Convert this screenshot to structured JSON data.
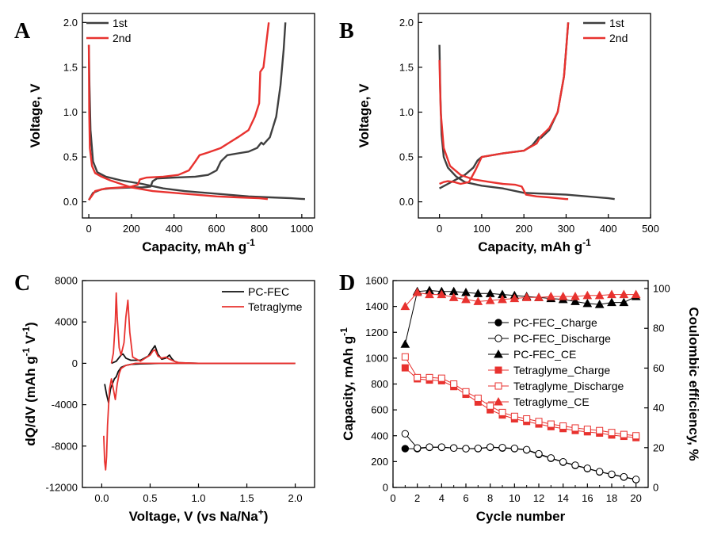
{
  "chart_data": [
    {
      "panel": "A",
      "type": "line",
      "xlabel": "Capacity, mAh g",
      "xlabel_sup": "-1",
      "ylabel": "Voltage, V",
      "xlim": [
        -30,
        1060
      ],
      "ylim": [
        -0.18,
        2.1
      ],
      "xticks": [
        0,
        200,
        400,
        600,
        800,
        1000
      ],
      "yticks": [
        0.0,
        0.5,
        1.0,
        1.5,
        2.0
      ],
      "ytick_labels": [
        "0.0",
        "0.5",
        "1.0",
        "1.5",
        "2.0"
      ],
      "legend_position": "top-left",
      "series": [
        {
          "name": "1st",
          "color": "#3f3f3f",
          "segments": [
            {
              "x": [
                0,
                3,
                8,
                20,
                40,
                80,
                150,
                250,
                350,
                450,
                550,
                650,
                750,
                850,
                950,
                1015
              ],
              "y": [
                1.75,
                1.3,
                0.8,
                0.45,
                0.33,
                0.28,
                0.24,
                0.2,
                0.15,
                0.12,
                0.1,
                0.08,
                0.06,
                0.05,
                0.04,
                0.03
              ]
            },
            {
              "x": [
                0,
                20,
                60,
                100,
                150,
                200,
                250,
                290,
                300,
                320,
                400,
                500,
                560,
                600,
                620,
                650,
                700,
                750,
                790,
                810,
                820,
                850,
                880,
                900,
                915,
                923
              ],
              "y": [
                0.02,
                0.1,
                0.14,
                0.15,
                0.155,
                0.16,
                0.16,
                0.17,
                0.23,
                0.26,
                0.27,
                0.28,
                0.3,
                0.35,
                0.45,
                0.52,
                0.54,
                0.56,
                0.6,
                0.66,
                0.64,
                0.72,
                0.95,
                1.3,
                1.7,
                2.0
              ]
            }
          ]
        },
        {
          "name": "2nd",
          "color": "#e8322f",
          "segments": [
            {
              "x": [
                0,
                2,
                5,
                15,
                30,
                60,
                100,
                150,
                200,
                300,
                400,
                500,
                600,
                700,
                800,
                840
              ],
              "y": [
                1.75,
                1.0,
                0.6,
                0.4,
                0.32,
                0.28,
                0.24,
                0.2,
                0.16,
                0.12,
                0.1,
                0.08,
                0.06,
                0.05,
                0.04,
                0.03
              ]
            },
            {
              "x": [
                0,
                30,
                80,
                150,
                200,
                230,
                240,
                270,
                350,
                420,
                470,
                500,
                520,
                560,
                620,
                660,
                700,
                750,
                780,
                800,
                805,
                820,
                835,
                845
              ],
              "y": [
                0.02,
                0.12,
                0.15,
                0.16,
                0.17,
                0.19,
                0.25,
                0.27,
                0.28,
                0.3,
                0.35,
                0.45,
                0.52,
                0.55,
                0.6,
                0.66,
                0.72,
                0.8,
                0.95,
                1.1,
                1.45,
                1.5,
                1.8,
                2.0
              ]
            }
          ]
        }
      ]
    },
    {
      "panel": "B",
      "type": "line",
      "xlabel": "Capacity, mAh g",
      "xlabel_sup": "-1",
      "ylabel": "Voltage, V",
      "xlim": [
        -50,
        500
      ],
      "ylim": [
        -0.18,
        2.1
      ],
      "xticks": [
        0,
        100,
        200,
        300,
        400,
        500
      ],
      "yticks": [
        0.0,
        0.5,
        1.0,
        1.5,
        2.0
      ],
      "ytick_labels": [
        "0.0",
        "0.5",
        "1.0",
        "1.5",
        "2.0"
      ],
      "legend_position": "top-right",
      "series": [
        {
          "name": "1st",
          "color": "#3f3f3f",
          "segments": [
            {
              "x": [
                0,
                2,
                5,
                10,
                20,
                40,
                60,
                100,
                150,
                200,
                250,
                300,
                350,
                400,
                415
              ],
              "y": [
                1.75,
                1.2,
                0.75,
                0.5,
                0.38,
                0.28,
                0.22,
                0.18,
                0.15,
                0.1,
                0.09,
                0.08,
                0.06,
                0.04,
                0.03
              ]
            },
            {
              "x": [
                0,
                20,
                40,
                60,
                80,
                90,
                100,
                150,
                200,
                220,
                235,
                240,
                260,
                280,
                295,
                300,
                305
              ],
              "y": [
                0.15,
                0.2,
                0.25,
                0.3,
                0.38,
                0.46,
                0.5,
                0.54,
                0.57,
                0.63,
                0.72,
                0.71,
                0.8,
                1.0,
                1.4,
                1.7,
                2.0
              ]
            }
          ]
        },
        {
          "name": "2nd",
          "color": "#e8322f",
          "segments": [
            {
              "x": [
                0,
                3,
                10,
                25,
                50,
                80,
                120,
                150,
                180,
                195,
                205,
                230,
                260,
                300,
                305
              ],
              "y": [
                1.58,
                1.0,
                0.6,
                0.4,
                0.3,
                0.25,
                0.22,
                0.2,
                0.19,
                0.17,
                0.08,
                0.06,
                0.05,
                0.03,
                0.03
              ]
            },
            {
              "x": [
                0,
                10,
                20,
                35,
                50,
                70,
                85,
                100,
                150,
                200,
                230,
                240,
                260,
                280,
                295,
                300,
                305
              ],
              "y": [
                0.2,
                0.22,
                0.23,
                0.22,
                0.2,
                0.22,
                0.35,
                0.5,
                0.54,
                0.57,
                0.65,
                0.73,
                0.82,
                1.0,
                1.4,
                1.7,
                2.0
              ]
            }
          ]
        }
      ]
    },
    {
      "panel": "C",
      "type": "line",
      "xlabel": "Voltage, V (vs Na/Na",
      "xlabel_sup": "+",
      "xlabel_end": ")",
      "ylabel": "dQ/dV (mAh g",
      "ylabel_sup1": "-1",
      "ylabel_mid": " V",
      "ylabel_sup2": "-1",
      "ylabel_end": ")",
      "xlim": [
        -0.2,
        2.2
      ],
      "ylim": [
        -12000,
        8000
      ],
      "xticks": [
        0.0,
        0.5,
        1.0,
        1.5,
        2.0
      ],
      "xtick_labels": [
        "0.0",
        "0.5",
        "1.0",
        "1.5",
        "2.0"
      ],
      "yticks": [
        -12000,
        -8000,
        -4000,
        0,
        4000,
        8000
      ],
      "legend_position": "top-right",
      "series": [
        {
          "name": "PC-FEC",
          "color": "#111111",
          "segments": [
            {
              "x": [
                0.03,
                0.05,
                0.07,
                0.09,
                0.11,
                0.13,
                0.15,
                0.17,
                0.2,
                0.25,
                0.3,
                0.4,
                0.5,
                0.6,
                0.7,
                0.8,
                1.0,
                1.5,
                2.0
              ],
              "y": [
                -2000,
                -3000,
                -3800,
                -2500,
                -2000,
                -1500,
                -1300,
                -800,
                -400,
                -200,
                -100,
                -50,
                -30,
                0,
                0,
                0,
                0,
                0,
                0
              ]
            },
            {
              "x": [
                0.1,
                0.15,
                0.2,
                0.22,
                0.25,
                0.3,
                0.4,
                0.48,
                0.52,
                0.55,
                0.58,
                0.62,
                0.66,
                0.7,
                0.72,
                0.75,
                0.8,
                1.0,
                1.5,
                2.0
              ],
              "y": [
                0,
                200,
                800,
                900,
                500,
                300,
                300,
                700,
                1300,
                1700,
                900,
                400,
                500,
                800,
                500,
                200,
                50,
                0,
                0,
                0
              ]
            }
          ]
        },
        {
          "name": "Tetraglyme",
          "color": "#e8322f",
          "segments": [
            {
              "x": [
                0.02,
                0.03,
                0.04,
                0.05,
                0.06,
                0.08,
                0.1,
                0.12,
                0.14,
                0.16,
                0.18,
                0.2,
                0.25,
                0.3,
                0.35,
                0.4,
                0.5,
                0.6,
                1.0,
                1.5,
                2.0
              ],
              "y": [
                -7000,
                -9500,
                -10300,
                -9000,
                -6000,
                -2500,
                -1500,
                -2500,
                -3500,
                -2000,
                -1000,
                -500,
                -200,
                -100,
                0,
                0,
                0,
                0,
                0,
                0,
                0
              ]
            },
            {
              "x": [
                0.1,
                0.12,
                0.14,
                0.15,
                0.16,
                0.18,
                0.2,
                0.23,
                0.25,
                0.27,
                0.29,
                0.32,
                0.4,
                0.5,
                0.53,
                0.55,
                0.58,
                0.62,
                0.66,
                0.7,
                0.75,
                0.8,
                1.0,
                1.5,
                2.0
              ],
              "y": [
                0,
                1000,
                4000,
                6800,
                4500,
                1500,
                800,
                2000,
                4500,
                6100,
                3000,
                600,
                200,
                800,
                1200,
                1300,
                700,
                500,
                600,
                400,
                200,
                50,
                0,
                0,
                0
              ]
            }
          ]
        }
      ]
    },
    {
      "panel": "D",
      "type": "line",
      "xlabel": "Cycle number",
      "ylabel_left": "Capacity, mAh g",
      "ylabel_left_sup": "-1",
      "ylabel_right": "Coulombic efficiency, %",
      "xlim": [
        0,
        21
      ],
      "ylim_left": [
        0,
        1600
      ],
      "ylim_right": [
        0,
        104
      ],
      "xticks": [
        0,
        2,
        4,
        6,
        8,
        10,
        12,
        14,
        16,
        18,
        20
      ],
      "yticks_left": [
        0,
        200,
        400,
        600,
        800,
        1000,
        1200,
        1400,
        1600
      ],
      "yticks_right": [
        0,
        20,
        40,
        60,
        80,
        100
      ],
      "legend_position": "center-right",
      "x": [
        1,
        2,
        3,
        4,
        5,
        6,
        7,
        8,
        9,
        10,
        11,
        12,
        13,
        14,
        15,
        16,
        17,
        18,
        19,
        20
      ],
      "series": [
        {
          "name": "PC-FEC_Charge",
          "color": "#000000",
          "marker": "circle",
          "filled": true,
          "axis": "left",
          "values": [
            300,
            300,
            310,
            310,
            305,
            300,
            300,
            310,
            305,
            300,
            290,
            255,
            225,
            195,
            170,
            145,
            120,
            100,
            80,
            60
          ]
        },
        {
          "name": "PC-FEC_Discharge",
          "color": "#000000",
          "marker": "circle",
          "filled": false,
          "axis": "left",
          "values": [
            415,
            305,
            312,
            312,
            305,
            300,
            302,
            312,
            308,
            302,
            292,
            260,
            228,
            198,
            172,
            148,
            122,
            102,
            82,
            62
          ]
        },
        {
          "name": "PC-FEC_CE",
          "color": "#000000",
          "marker": "triangle",
          "filled": true,
          "axis": "right",
          "values": [
            72,
            98.5,
            99,
            98.5,
            98.5,
            98,
            97.5,
            97.5,
            97,
            96.5,
            96,
            95.5,
            95,
            94.5,
            93.5,
            92.5,
            92,
            93,
            93,
            96
          ]
        },
        {
          "name": "Tetraglyme_Charge",
          "color": "#e8322f",
          "marker": "square",
          "filled": true,
          "axis": "left",
          "values": [
            925,
            840,
            830,
            825,
            780,
            720,
            660,
            600,
            560,
            530,
            510,
            490,
            470,
            455,
            440,
            430,
            420,
            405,
            395,
            385
          ]
        },
        {
          "name": "Tetraglyme_Discharge",
          "color": "#e8322f",
          "marker": "square",
          "filled": false,
          "axis": "left",
          "values": [
            1010,
            850,
            850,
            845,
            800,
            740,
            690,
            630,
            580,
            550,
            530,
            510,
            490,
            475,
            460,
            450,
            440,
            425,
            410,
            400
          ]
        },
        {
          "name": "Tetraglyme_CE",
          "color": "#e8322f",
          "marker": "triangle",
          "filled": true,
          "axis": "right",
          "values": [
            91,
            98,
            97,
            97,
            95.5,
            94.5,
            93.5,
            94,
            94.5,
            95,
            95.5,
            95.5,
            96,
            96,
            96,
            96.5,
            96.5,
            97,
            97,
            97
          ]
        }
      ]
    }
  ]
}
